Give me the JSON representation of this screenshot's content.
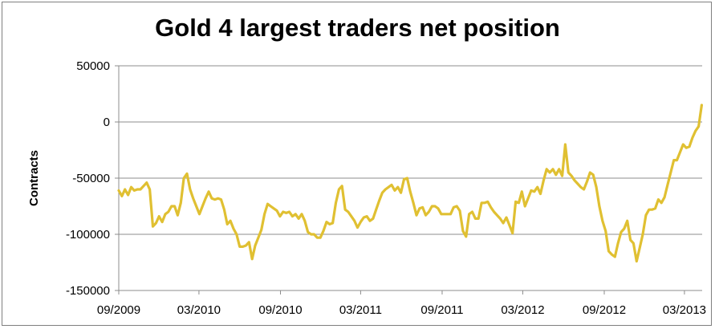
{
  "chart_data": {
    "type": "line",
    "title": "Gold 4 largest traders net position",
    "xlabel": "",
    "ylabel": "Contracts",
    "ylim": [
      -150000,
      50000
    ],
    "yticks": [
      50000,
      0,
      -50000,
      -100000,
      -150000
    ],
    "ytick_labels": [
      "50000",
      "0",
      "-50000",
      "-100000",
      "-150000"
    ],
    "xlim": [
      "2009-09-01",
      "2013-04-10"
    ],
    "xticks": [
      "2009-09-01",
      "2010-03-01",
      "2010-09-01",
      "2011-03-01",
      "2011-09-01",
      "2012-03-01",
      "2012-09-01",
      "2013-03-01"
    ],
    "xtick_labels": [
      "09/2009",
      "03/2010",
      "09/2010",
      "03/2011",
      "09/2011",
      "03/2012",
      "09/2012",
      "03/2013"
    ],
    "grid": true,
    "legend": "none",
    "series": [
      {
        "color": "#e0c032",
        "x": [
          "2009-09-01",
          "2009-09-08",
          "2009-09-15",
          "2009-09-22",
          "2009-09-29",
          "2009-10-06",
          "2009-10-13",
          "2009-10-20",
          "2009-10-27",
          "2009-11-03",
          "2009-11-10",
          "2009-11-17",
          "2009-11-24",
          "2009-12-01",
          "2009-12-08",
          "2009-12-15",
          "2009-12-22",
          "2009-12-29",
          "2010-01-05",
          "2010-01-12",
          "2010-01-19",
          "2010-01-26",
          "2010-02-02",
          "2010-02-09",
          "2010-02-16",
          "2010-02-23",
          "2010-03-02",
          "2010-03-09",
          "2010-03-16",
          "2010-03-23",
          "2010-03-30",
          "2010-04-06",
          "2010-04-13",
          "2010-04-20",
          "2010-04-27",
          "2010-05-04",
          "2010-05-11",
          "2010-05-18",
          "2010-05-25",
          "2010-06-01",
          "2010-06-08",
          "2010-06-15",
          "2010-06-22",
          "2010-06-29",
          "2010-07-06",
          "2010-07-13",
          "2010-07-20",
          "2010-07-27",
          "2010-08-03",
          "2010-08-10",
          "2010-08-17",
          "2010-08-24",
          "2010-08-31",
          "2010-09-07",
          "2010-09-14",
          "2010-09-21",
          "2010-09-28",
          "2010-10-05",
          "2010-10-12",
          "2010-10-19",
          "2010-10-26",
          "2010-11-02",
          "2010-11-09",
          "2010-11-16",
          "2010-11-23",
          "2010-11-30",
          "2010-12-07",
          "2010-12-14",
          "2010-12-21",
          "2010-12-28",
          "2011-01-04",
          "2011-01-11",
          "2011-01-18",
          "2011-01-25",
          "2011-02-01",
          "2011-02-08",
          "2011-02-15",
          "2011-02-22",
          "2011-03-01",
          "2011-03-08",
          "2011-03-15",
          "2011-03-22",
          "2011-03-29",
          "2011-04-05",
          "2011-04-12",
          "2011-04-19",
          "2011-04-26",
          "2011-05-03",
          "2011-05-10",
          "2011-05-17",
          "2011-05-24",
          "2011-05-31",
          "2011-06-07",
          "2011-06-14",
          "2011-06-21",
          "2011-06-28",
          "2011-07-05",
          "2011-07-12",
          "2011-07-19",
          "2011-07-26",
          "2011-08-02",
          "2011-08-09",
          "2011-08-16",
          "2011-08-23",
          "2011-08-30",
          "2011-09-06",
          "2011-09-13",
          "2011-09-20",
          "2011-09-27",
          "2011-10-04",
          "2011-10-11",
          "2011-10-18",
          "2011-10-25",
          "2011-11-01",
          "2011-11-08",
          "2011-11-15",
          "2011-11-22",
          "2011-11-29",
          "2011-12-06",
          "2011-12-13",
          "2011-12-20",
          "2011-12-27",
          "2012-01-03",
          "2012-01-10",
          "2012-01-17",
          "2012-01-24",
          "2012-01-31",
          "2012-02-07",
          "2012-02-14",
          "2012-02-21",
          "2012-02-28",
          "2012-03-06",
          "2012-03-13",
          "2012-03-20",
          "2012-03-27",
          "2012-04-03",
          "2012-04-10",
          "2012-04-17",
          "2012-04-24",
          "2012-05-01",
          "2012-05-08",
          "2012-05-15",
          "2012-05-22",
          "2012-05-29",
          "2012-06-05",
          "2012-06-12",
          "2012-06-19",
          "2012-06-26",
          "2012-07-03",
          "2012-07-10",
          "2012-07-17",
          "2012-07-24",
          "2012-07-31",
          "2012-08-07",
          "2012-08-14",
          "2012-08-21",
          "2012-08-28",
          "2012-09-04",
          "2012-09-11",
          "2012-09-18",
          "2012-09-25",
          "2012-10-02",
          "2012-10-09",
          "2012-10-16",
          "2012-10-23",
          "2012-10-30",
          "2012-11-06",
          "2012-11-13",
          "2012-11-20",
          "2012-11-27",
          "2012-12-04",
          "2012-12-11",
          "2012-12-18",
          "2012-12-25",
          "2013-01-01",
          "2013-01-08",
          "2013-01-15",
          "2013-01-22",
          "2013-01-29",
          "2013-02-05",
          "2013-02-12",
          "2013-02-19",
          "2013-02-26",
          "2013-03-05",
          "2013-03-12",
          "2013-03-19",
          "2013-03-26",
          "2013-04-02",
          "2013-04-09"
        ],
        "values": [
          -61000,
          -66000,
          -60000,
          -65000,
          -58000,
          -61000,
          -60000,
          -60000,
          -57000,
          -54000,
          -60000,
          -93000,
          -90000,
          -84000,
          -89000,
          -82000,
          -80000,
          -75000,
          -75000,
          -83000,
          -72000,
          -50000,
          -46000,
          -60000,
          -68000,
          -75000,
          -82000,
          -75000,
          -68000,
          -62000,
          -68000,
          -69000,
          -68000,
          -69000,
          -78000,
          -91000,
          -88000,
          -95000,
          -100000,
          -111000,
          -111000,
          -110000,
          -107000,
          -122000,
          -110000,
          -103000,
          -96000,
          -82000,
          -73000,
          -75000,
          -77000,
          -79000,
          -84000,
          -80000,
          -81000,
          -80000,
          -84000,
          -82000,
          -86000,
          -82000,
          -88000,
          -98000,
          -100000,
          -100000,
          -103000,
          -103000,
          -97000,
          -89000,
          -91000,
          -90000,
          -72000,
          -60000,
          -57000,
          -78000,
          -80000,
          -84000,
          -88000,
          -94000,
          -89000,
          -85000,
          -84000,
          -88000,
          -86000,
          -78000,
          -70000,
          -63000,
          -60000,
          -58000,
          -56000,
          -61000,
          -58000,
          -63000,
          -51000,
          -50000,
          -62000,
          -72000,
          -83000,
          -77000,
          -76000,
          -83000,
          -80000,
          -75000,
          -75000,
          -77000,
          -82000,
          -82000,
          -82000,
          -82000,
          -76000,
          -75000,
          -79000,
          -97000,
          -102000,
          -82000,
          -80000,
          -86000,
          -86000,
          -72000,
          -72000,
          -71000,
          -76000,
          -80000,
          -83000,
          -86000,
          -90000,
          -85000,
          -92000,
          -99000,
          -71000,
          -72000,
          -62000,
          -75000,
          -68000,
          -61000,
          -62000,
          -58000,
          -64000,
          -52000,
          -42000,
          -45000,
          -42000,
          -47000,
          -42000,
          -48000,
          -20000,
          -45000,
          -48000,
          -52000,
          -55000,
          -58000,
          -60000,
          -53000,
          -45000,
          -47000,
          -58000,
          -75000,
          -88000,
          -97000,
          -115000,
          -118000,
          -120000,
          -108000,
          -98000,
          -95000,
          -88000,
          -105000,
          -108000,
          -124000,
          -112000,
          -100000,
          -83000,
          -78000,
          -78000,
          -77000,
          -69000,
          -72000,
          -67000,
          -56000,
          -45000,
          -34000,
          -34000,
          -27000,
          -20000,
          -23000,
          -22000,
          -14000,
          -8000,
          -4000,
          15000
        ]
      }
    ]
  }
}
